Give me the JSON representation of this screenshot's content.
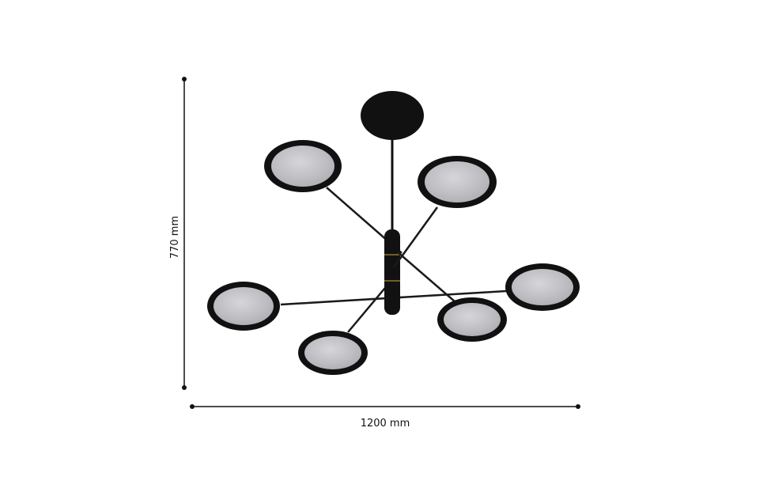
{
  "dimensions": {
    "height_label": "770 mm",
    "width_label": "1200 mm"
  },
  "colors": {
    "fixture": "#111111",
    "diffuser": "#c4c4c8",
    "accent_ring": "#b08a3a",
    "dimension_line": "#111111"
  }
}
